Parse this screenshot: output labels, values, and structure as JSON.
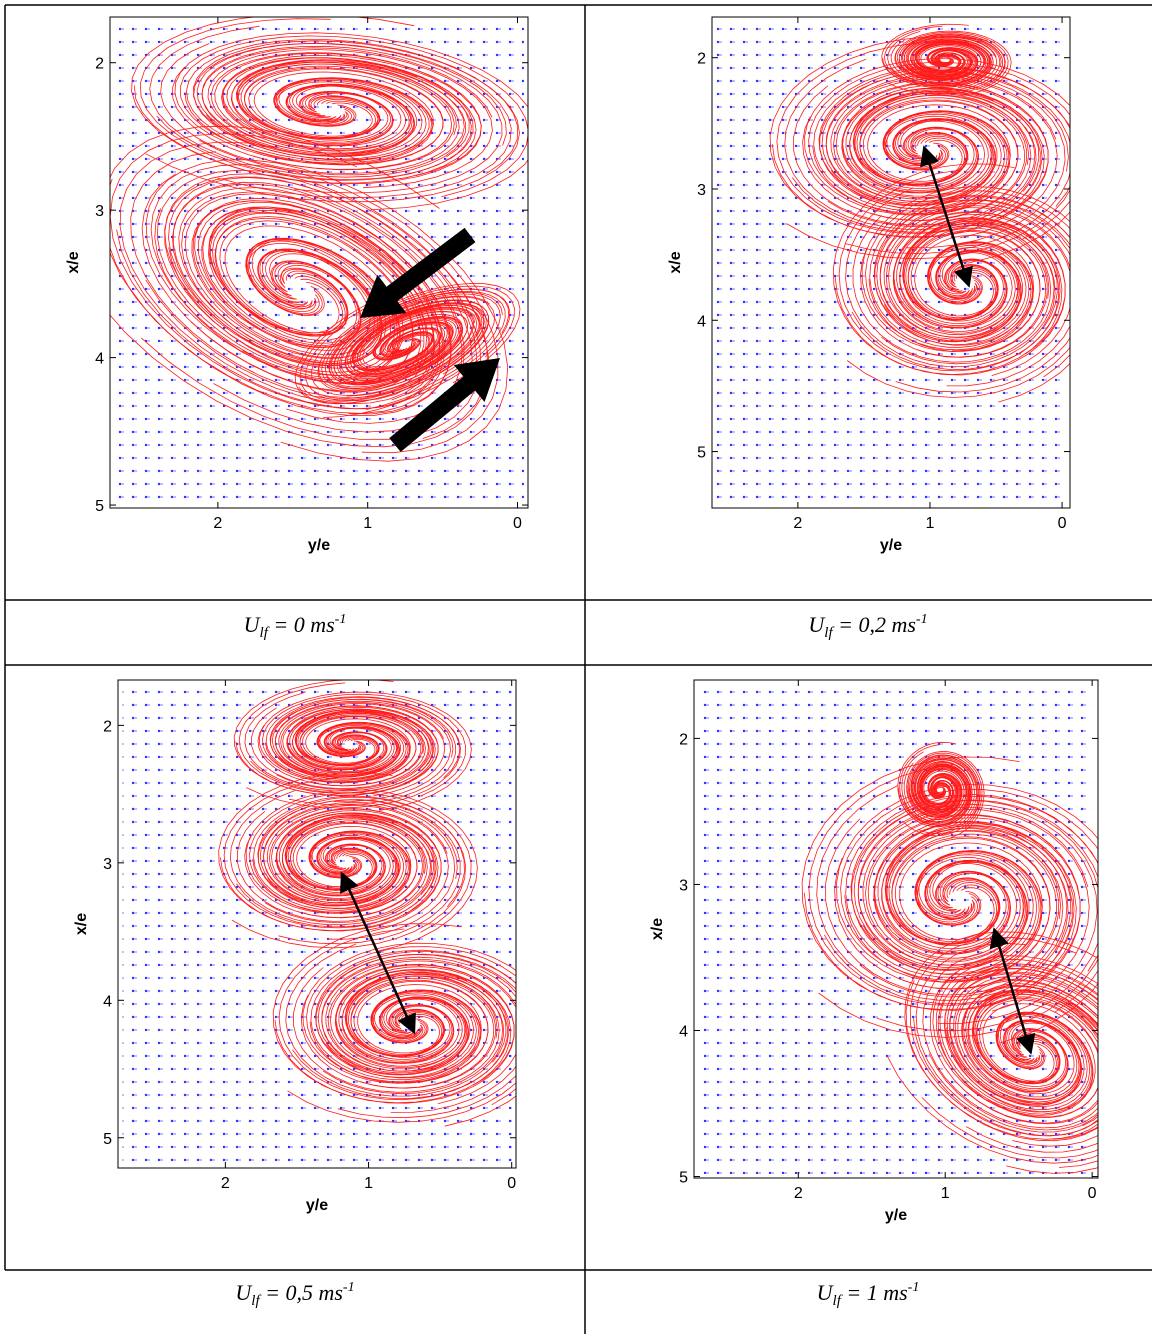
{
  "figure": {
    "panels": [
      {
        "chart": {
          "type": "quiver",
          "xlabel": "y/e",
          "ylabel": "x/e",
          "xlim": [
            2.72,
            -0.07
          ],
          "ylim": [
            5.02,
            1.69
          ],
          "xticks": [
            2,
            1,
            0
          ],
          "yticks": [
            2,
            3,
            4,
            5
          ]
        },
        "caption": {
          "symbol": "U",
          "subscript": "lf",
          "text": "  = 0 ms",
          "superscript": "-1"
        }
      },
      {
        "chart": {
          "type": "quiver",
          "xlabel": "y/e",
          "ylabel": "x/e",
          "xlim": [
            2.65,
            -0.06
          ],
          "ylim": [
            5.43,
            1.69
          ],
          "xticks": [
            2,
            1,
            0
          ],
          "yticks": [
            2,
            3,
            4,
            5
          ]
        },
        "caption": {
          "symbol": "U",
          "subscript": "lf",
          "text": "  = 0,2 ms",
          "superscript": "-1"
        }
      },
      {
        "chart": {
          "type": "quiver",
          "xlabel": "y/e",
          "ylabel": "x/e",
          "xlim": [
            2.75,
            -0.03
          ],
          "ylim": [
            5.22,
            1.67
          ],
          "xticks": [
            2,
            1,
            0
          ],
          "yticks": [
            2,
            3,
            4,
            5
          ]
        },
        "caption": {
          "symbol": "U",
          "subscript": "lf",
          "text": " = 0,5 ms",
          "superscript": "-1"
        }
      },
      {
        "chart": {
          "type": "quiver",
          "xlabel": "y/e",
          "ylabel": "x/e",
          "xlim": [
            2.71,
            -0.04
          ],
          "ylim": [
            5.01,
            1.6
          ],
          "xticks": [
            2,
            1,
            0
          ],
          "yticks": [
            2,
            3,
            4,
            5
          ]
        },
        "caption": {
          "symbol": "U",
          "subscript": "lf",
          "text": " = 1 ms",
          "superscript": "-1"
        }
      }
    ]
  }
}
